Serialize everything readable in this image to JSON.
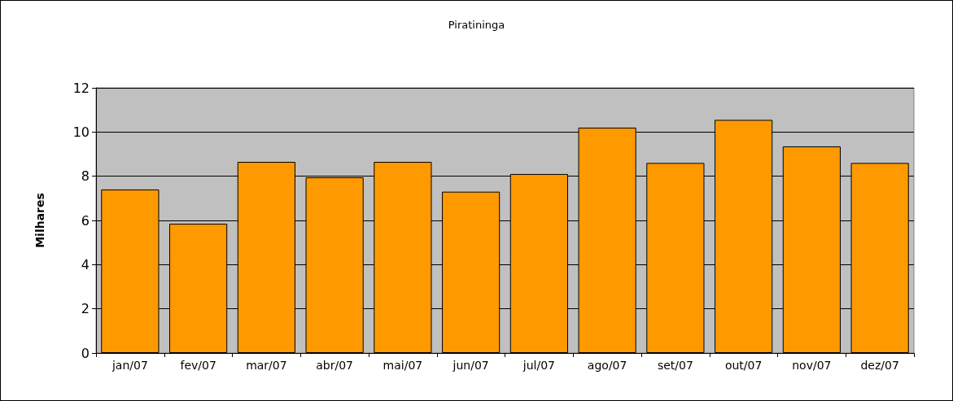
{
  "chart_data": {
    "type": "bar",
    "title": "Piratininga",
    "ylabel": "Milhares",
    "categories": [
      "jan/07",
      "fev/07",
      "mar/07",
      "abr/07",
      "mai/07",
      "jun/07",
      "jul/07",
      "ago/07",
      "set/07",
      "out/07",
      "nov/07",
      "dez/07"
    ],
    "values": [
      7.4,
      5.85,
      8.65,
      7.95,
      8.65,
      7.3,
      8.1,
      10.2,
      8.6,
      10.55,
      9.35,
      8.6
    ],
    "color": "#ff9900",
    "ylim": [
      0,
      12
    ],
    "yticks": [
      0,
      2,
      4,
      6,
      8,
      10,
      12
    ],
    "grid": "y"
  }
}
